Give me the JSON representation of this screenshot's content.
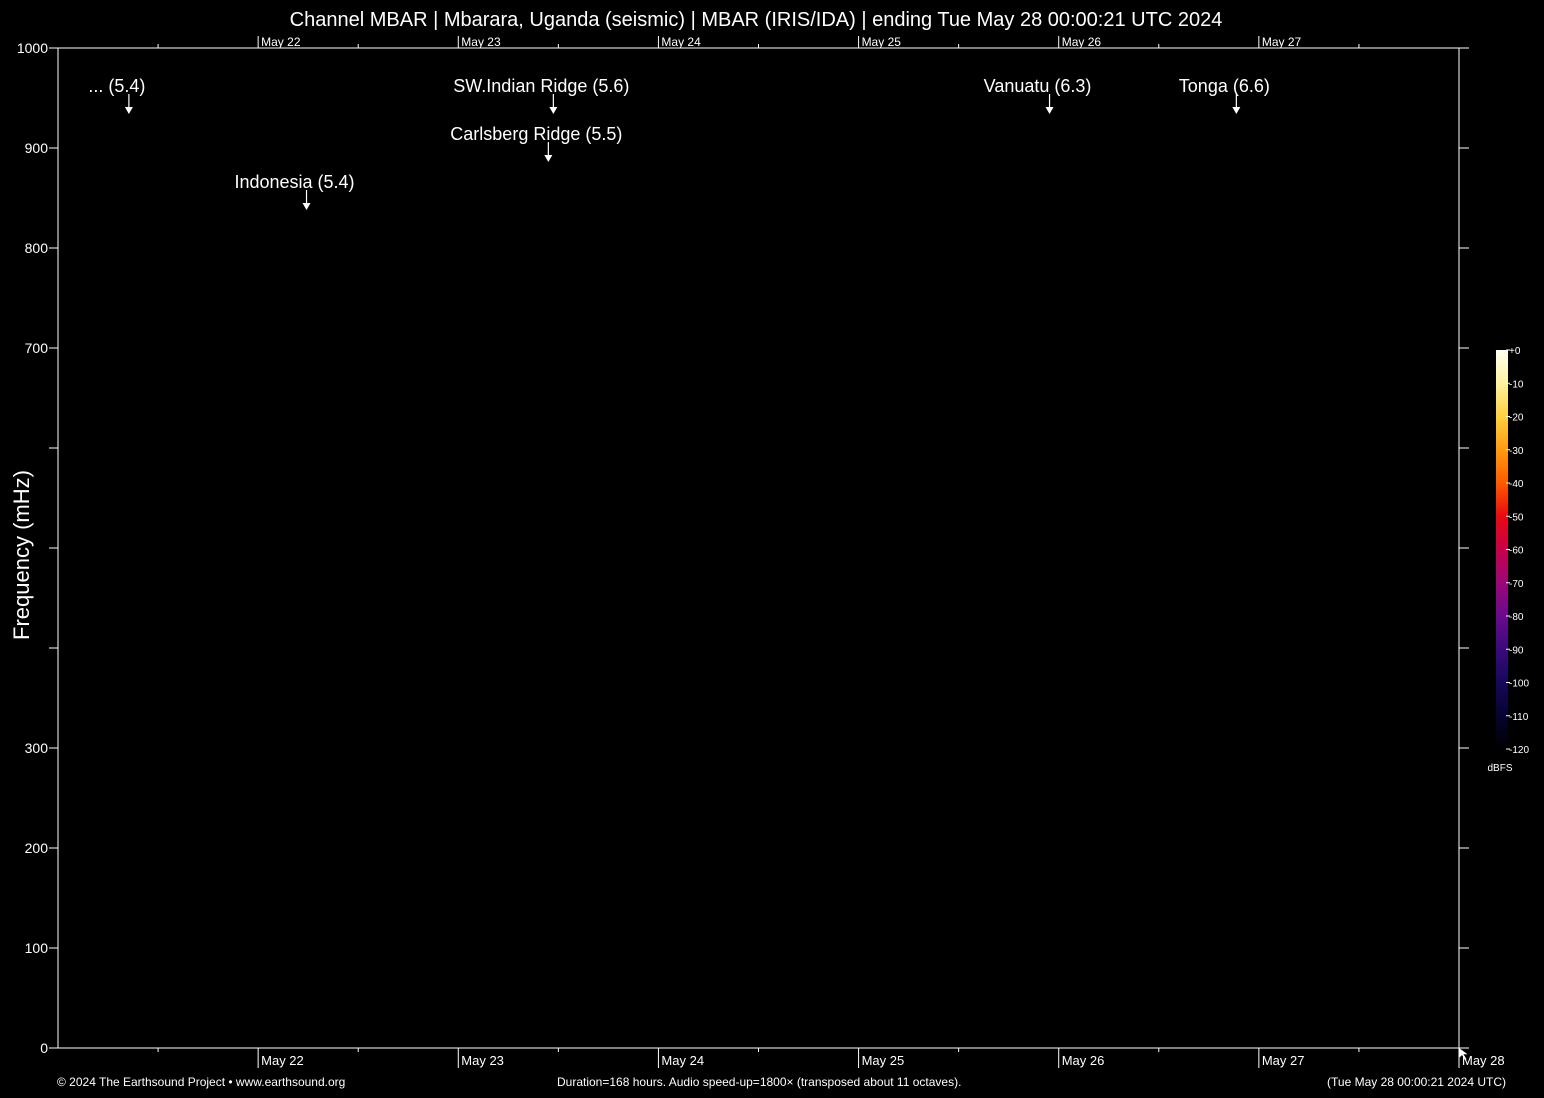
{
  "title": "Channel MBAR | Mbarara, Uganda (seismic) | MBAR (IRIS/IDA) | ending Tue May 28 00:00:21 UTC 2024",
  "footer": {
    "left": "© 2024 The Earthsound Project • www.earthsound.org",
    "center": "Duration=168 hours. Audio speed-up=1800× (transposed about 11 octaves).",
    "right": "(Tue May 28 00:00:21 2024 UTC)"
  },
  "chart_data": {
    "type": "heatmap",
    "title": "Channel MBAR | Mbarara, Uganda (seismic) | MBAR (IRIS/IDA) | ending Tue May 28 00:00:21 UTC 2024",
    "ylabel": "Frequency (mHz)",
    "xlabel": "",
    "xlim_hours": [
      0,
      168
    ],
    "ylim": [
      0,
      1000
    ],
    "y_ticks": [
      {
        "value": 0,
        "label": "0"
      },
      {
        "value": 100,
        "label": "100"
      },
      {
        "value": 200,
        "label": "200"
      },
      {
        "value": 300,
        "label": "300"
      },
      {
        "value": 400,
        "label": ""
      },
      {
        "value": 500,
        "label": ""
      },
      {
        "value": 600,
        "label": ""
      },
      {
        "value": 700,
        "label": "700"
      },
      {
        "value": 800,
        "label": "800"
      },
      {
        "value": 900,
        "label": "900"
      },
      {
        "value": 1000,
        "label": "1000"
      }
    ],
    "x_day_labels": [
      {
        "hours": 24,
        "label": "May 22"
      },
      {
        "hours": 48,
        "label": "May 23"
      },
      {
        "hours": 72,
        "label": "May 24"
      },
      {
        "hours": 96,
        "label": "May 25"
      },
      {
        "hours": 120,
        "label": "May 26"
      },
      {
        "hours": 144,
        "label": "May 27"
      },
      {
        "hours": 168,
        "label": "May 28"
      }
    ],
    "grid": false,
    "colorbar": {
      "unit": "dBFS",
      "ticks": [
        "+0",
        "-10",
        "-20",
        "-30",
        "-40",
        "-50",
        "-60",
        "-70",
        "-80",
        "-90",
        "-100",
        "-110",
        "-120"
      ],
      "colors": [
        "#fffff0",
        "#fff3a0",
        "#ffd040",
        "#ff9a10",
        "#ff5a00",
        "#e80a10",
        "#c8004a",
        "#9a0878",
        "#6a0a8c",
        "#3a0a7c",
        "#16085a",
        "#050430",
        "#000000"
      ]
    },
    "events": [
      {
        "label": "... (5.4)",
        "hours": 8.5,
        "level": 0
      },
      {
        "label": "Indonesia (5.4)",
        "hours": 29.8,
        "level": 2
      },
      {
        "label": "SW.Indian Ridge (5.6)",
        "hours": 59.4,
        "level": 0
      },
      {
        "label": "Carlsberg Ridge (5.5)",
        "hours": 58.8,
        "level": 1
      },
      {
        "label": "Vanuatu (6.3)",
        "hours": 118.9,
        "level": 0
      },
      {
        "label": "Tonga (6.6)",
        "hours": 141.3,
        "level": 0
      }
    ]
  }
}
